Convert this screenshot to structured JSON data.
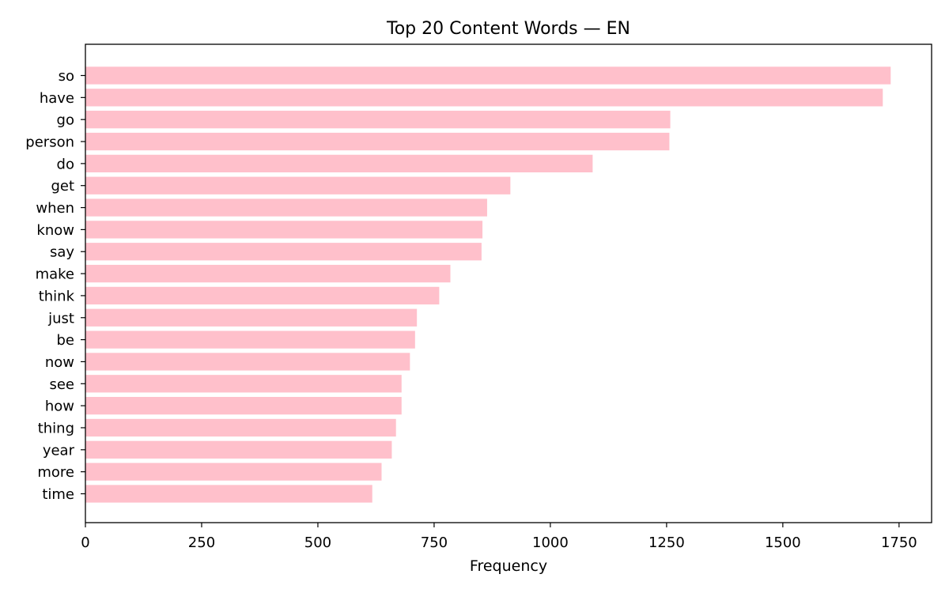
{
  "chart_data": {
    "type": "bar",
    "orientation": "horizontal",
    "title": "Top 20 Content Words — EN",
    "xlabel": "Frequency",
    "ylabel": "",
    "categories": [
      "so",
      "have",
      "go",
      "person",
      "do",
      "get",
      "when",
      "know",
      "say",
      "make",
      "think",
      "just",
      "be",
      "now",
      "see",
      "how",
      "thing",
      "year",
      "more",
      "time"
    ],
    "values": [
      1732,
      1715,
      1258,
      1256,
      1091,
      914,
      864,
      854,
      852,
      785,
      761,
      713,
      709,
      698,
      680,
      680,
      668,
      659,
      637,
      617
    ],
    "xlim": [
      0,
      1820
    ],
    "xticks": [
      0,
      250,
      500,
      750,
      1000,
      1250,
      1500,
      1750
    ],
    "bar_color": "#ffc0cb",
    "grid": false,
    "legend": "none"
  }
}
